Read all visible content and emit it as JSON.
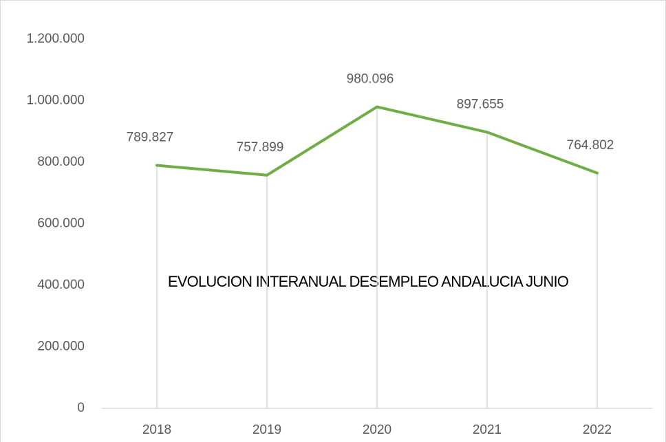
{
  "chart_data": {
    "type": "line",
    "title": "EVOLUCION INTERANUAL DESEMPLEO ANDALUCIA JUNIO",
    "categories": [
      "2018",
      "2019",
      "2020",
      "2021",
      "2022"
    ],
    "series": [
      {
        "name": "Desempleo",
        "color": "#70ad47",
        "values": [
          789827,
          757899,
          980096,
          897655,
          764802
        ],
        "value_labels": [
          "789.827",
          "757.899",
          "980.096",
          "897.655",
          "764.802"
        ]
      }
    ],
    "ylim": [
      0,
      1200000
    ],
    "yticks": [
      0,
      {
        "value": 200000,
        "label": "200.000"
      },
      {
        "value": 400000,
        "label": "400.000"
      },
      {
        "value": 600000,
        "label": "600.000"
      },
      {
        "value": 800000,
        "label": "800.000"
      },
      {
        "value": 1000000,
        "label": "1.000.000"
      },
      {
        "value": 1200000,
        "label": "1.200.000"
      }
    ]
  }
}
